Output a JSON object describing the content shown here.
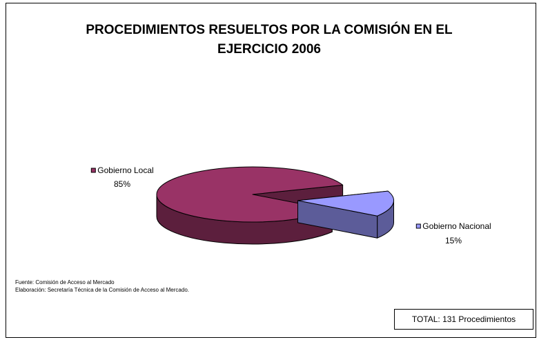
{
  "chart_data": {
    "type": "pie",
    "title": "PROCEDIMIENTOS RESUELTOS POR LA COMISIÓN EN EL EJERCICIO 2006",
    "categories": [
      "Gobierno Local",
      "Gobierno Nacional"
    ],
    "values": [
      85,
      15
    ],
    "value_labels": [
      "85%",
      "15%"
    ],
    "colors": [
      "#993366",
      "#9999ff"
    ],
    "notes": [
      "Fuente: Comisión de Acceso al Mercado",
      "Elaboración: Secretaría Técnica de la Comisión de Acceso  al Mercado."
    ],
    "total": "TOTAL: 131 Procedimientos"
  }
}
